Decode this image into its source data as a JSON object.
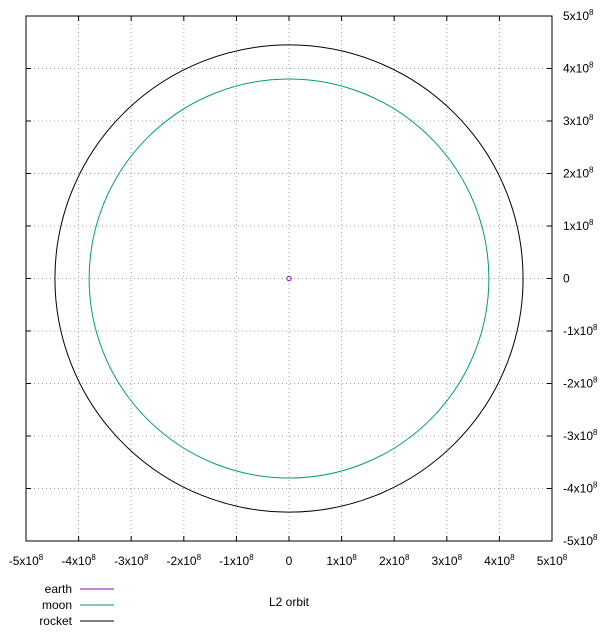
{
  "chart_data": {
    "type": "line",
    "title": "L2 orbit",
    "xlabel": "",
    "ylabel": "",
    "xlim": [
      -500000000,
      500000000
    ],
    "ylim": [
      -500000000,
      500000000
    ],
    "grid": true,
    "legend_position": "bottom-left",
    "x_ticks": [
      {
        "value": -500000000,
        "mantissa": "-5x10",
        "exp": "8"
      },
      {
        "value": -400000000,
        "mantissa": "-4x10",
        "exp": "8"
      },
      {
        "value": -300000000,
        "mantissa": "-3x10",
        "exp": "8"
      },
      {
        "value": -200000000,
        "mantissa": "-2x10",
        "exp": "8"
      },
      {
        "value": -100000000,
        "mantissa": "-1x10",
        "exp": "8"
      },
      {
        "value": 0,
        "mantissa": "0",
        "exp": ""
      },
      {
        "value": 100000000,
        "mantissa": "1x10",
        "exp": "8"
      },
      {
        "value": 200000000,
        "mantissa": "2x10",
        "exp": "8"
      },
      {
        "value": 300000000,
        "mantissa": "3x10",
        "exp": "8"
      },
      {
        "value": 400000000,
        "mantissa": "4x10",
        "exp": "8"
      },
      {
        "value": 500000000,
        "mantissa": "5x10",
        "exp": "8"
      }
    ],
    "y_ticks": [
      {
        "value": 500000000,
        "mantissa": "5x10",
        "exp": "8"
      },
      {
        "value": 400000000,
        "mantissa": "4x10",
        "exp": "8"
      },
      {
        "value": 300000000,
        "mantissa": "3x10",
        "exp": "8"
      },
      {
        "value": 200000000,
        "mantissa": "2x10",
        "exp": "8"
      },
      {
        "value": 100000000,
        "mantissa": "1x10",
        "exp": "8"
      },
      {
        "value": 0,
        "mantissa": "0",
        "exp": ""
      },
      {
        "value": -100000000,
        "mantissa": "-1x10",
        "exp": "8"
      },
      {
        "value": -200000000,
        "mantissa": "-2x10",
        "exp": "8"
      },
      {
        "value": -300000000,
        "mantissa": "-3x10",
        "exp": "8"
      },
      {
        "value": -400000000,
        "mantissa": "-4x10",
        "exp": "8"
      },
      {
        "value": -500000000,
        "mantissa": "-5x10",
        "exp": "8"
      }
    ],
    "series": [
      {
        "name": "earth",
        "shape": "point",
        "center": [
          0,
          0
        ],
        "radius": 0,
        "color": "#9400d3"
      },
      {
        "name": "moon",
        "shape": "circle",
        "center": [
          0,
          0
        ],
        "radius": 380000000,
        "color": "#009e73"
      },
      {
        "name": "rocket",
        "shape": "circle",
        "center": [
          0,
          0
        ],
        "radius": 445000000,
        "color": "#000000"
      }
    ]
  }
}
